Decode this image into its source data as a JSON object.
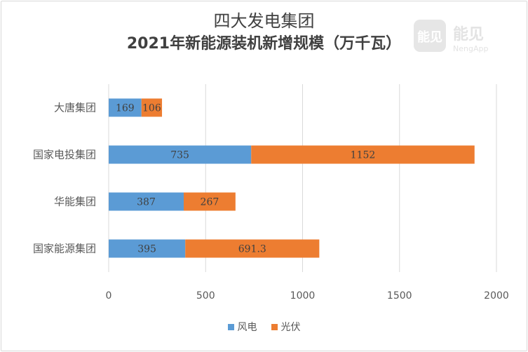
{
  "chart_data": {
    "type": "bar",
    "orientation": "horizontal",
    "stacked": true,
    "title": "四大发电集团",
    "subtitle": "2021年新能源装机新增规模（万千瓦）",
    "categories": [
      "大唐集团",
      "国家电投集团",
      "华能集团",
      "国家能源集团"
    ],
    "series": [
      {
        "name": "风电",
        "values": [
          169,
          735,
          387,
          395
        ],
        "labels": [
          "169",
          "735",
          "387",
          "395"
        ],
        "color": "#5b9bd5"
      },
      {
        "name": "光伏",
        "values": [
          106,
          1152,
          267,
          691.3
        ],
        "labels": [
          "106",
          "1152",
          "267",
          "691.3"
        ],
        "color": "#ed7d31"
      }
    ],
    "xlim": [
      0,
      2000
    ],
    "xticks": [
      0,
      500,
      1000,
      1500,
      2000
    ],
    "grid": true,
    "legend_position": "bottom"
  },
  "watermark": {
    "brand": "能见",
    "sub": "NengApp"
  }
}
